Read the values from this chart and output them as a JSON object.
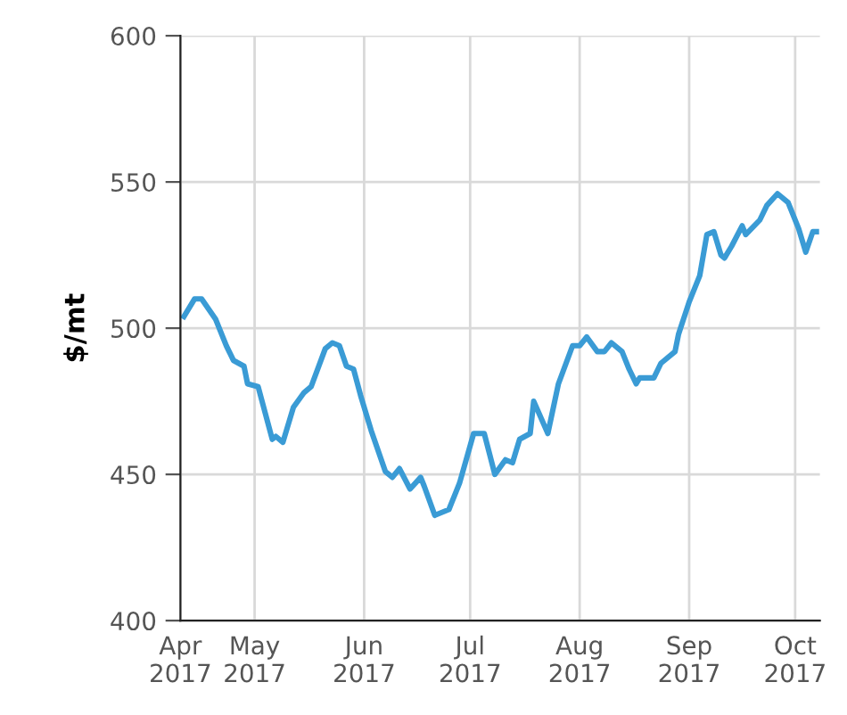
{
  "chart_data": {
    "type": "line",
    "ylabel": "$/mt",
    "x": [
      "2017-04-11",
      "2017-04-14",
      "2017-04-16",
      "2017-04-20",
      "2017-04-23",
      "2017-04-25",
      "2017-04-28",
      "2017-04-29",
      "2017-05-02",
      "2017-05-06",
      "2017-05-07",
      "2017-05-09",
      "2017-05-12",
      "2017-05-15",
      "2017-05-17",
      "2017-05-21",
      "2017-05-23",
      "2017-05-25",
      "2017-05-27",
      "2017-05-29",
      "2017-05-31",
      "2017-06-03",
      "2017-06-07",
      "2017-06-09",
      "2017-06-11",
      "2017-06-14",
      "2017-06-17",
      "2017-06-18",
      "2017-06-21",
      "2017-06-25",
      "2017-06-28",
      "2017-07-02",
      "2017-07-05",
      "2017-07-08",
      "2017-07-11",
      "2017-07-13",
      "2017-07-15",
      "2017-07-18",
      "2017-07-19",
      "2017-07-23",
      "2017-07-26",
      "2017-07-30",
      "2017-08-01",
      "2017-08-03",
      "2017-08-06",
      "2017-08-08",
      "2017-08-10",
      "2017-08-13",
      "2017-08-15",
      "2017-08-17",
      "2017-08-18",
      "2017-08-22",
      "2017-08-24",
      "2017-08-28",
      "2017-08-29",
      "2017-09-01",
      "2017-09-04",
      "2017-09-06",
      "2017-09-08",
      "2017-09-10",
      "2017-09-11",
      "2017-09-13",
      "2017-09-16",
      "2017-09-17",
      "2017-09-21",
      "2017-09-23",
      "2017-09-26",
      "2017-09-29",
      "2017-10-02",
      "2017-10-04",
      "2017-10-06",
      "2017-10-07"
    ],
    "series": [
      {
        "color": "#3a9bd5",
        "values": [
          504,
          510,
          510,
          503,
          494,
          489,
          487,
          481,
          480,
          462,
          463,
          461,
          473,
          478,
          480,
          493,
          495,
          494,
          487,
          486,
          477,
          465,
          451,
          449,
          452,
          445,
          449,
          446,
          436,
          438,
          447,
          464,
          464,
          450,
          455,
          454,
          462,
          464,
          475,
          464,
          481,
          494,
          494,
          497,
          492,
          492,
          495,
          492,
          486,
          481,
          483,
          483,
          488,
          492,
          498,
          509,
          518,
          532,
          533,
          525,
          524,
          528,
          535,
          532,
          537,
          542,
          546,
          543,
          534,
          526,
          533,
          533
        ]
      }
    ],
    "xlim": [
      "2017-04-10",
      "2017-10-08"
    ],
    "xticks": [
      {
        "value": "2017-04-10",
        "label": "Apr\n2017"
      },
      {
        "value": "2017-05-01",
        "label": "May\n2017"
      },
      {
        "value": "2017-06-01",
        "label": "Jun\n2017"
      },
      {
        "value": "2017-07-01",
        "label": "Jul\n2017"
      },
      {
        "value": "2017-08-01",
        "label": "Aug\n2017"
      },
      {
        "value": "2017-09-01",
        "label": "Sep\n2017"
      },
      {
        "value": "2017-10-01",
        "label": "Oct\n2017"
      }
    ],
    "ylim": [
      400,
      600
    ],
    "yticks": [
      400,
      450,
      500,
      550,
      600
    ],
    "grid": true,
    "marker": "none",
    "line_style": "solid"
  }
}
